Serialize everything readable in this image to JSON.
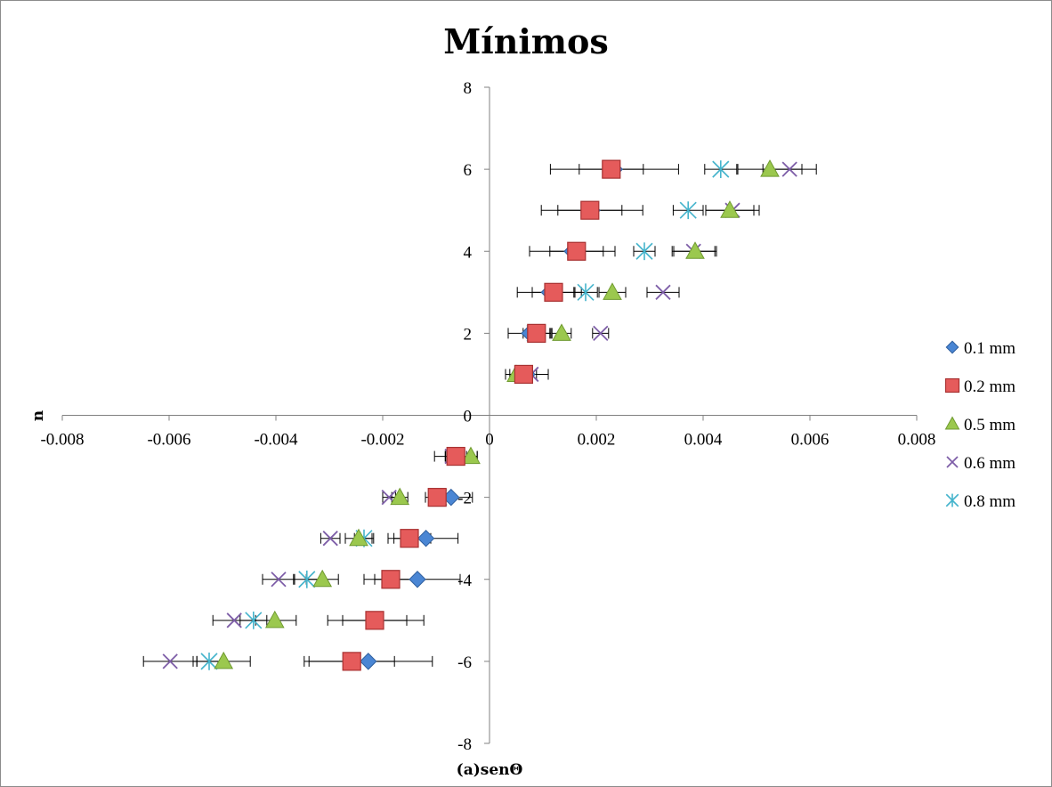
{
  "chart_data": {
    "type": "scatter",
    "title": "Mínimos",
    "xlabel": "(a)senΘ",
    "ylabel": "n",
    "xlim": [
      -0.008,
      0.008
    ],
    "ylim": [
      -8,
      8
    ],
    "x_ticks": [
      -0.008,
      -0.006,
      -0.004,
      -0.002,
      0,
      0.002,
      0.004,
      0.006,
      0.008
    ],
    "x_tick_labels": [
      "-0.008",
      "-0.006",
      "-0.004",
      "-0.002",
      "0",
      "0.002",
      "0.004",
      "0.006",
      "0.008"
    ],
    "y_ticks": [
      -8,
      -6,
      -4,
      -2,
      0,
      2,
      4,
      6,
      8
    ],
    "y_tick_labels": [
      "-8",
      "-6",
      "-4",
      "-2",
      "0",
      "2",
      "4",
      "6",
      "8"
    ],
    "grid": false,
    "legend_position": "right",
    "error_bars": "horizontal",
    "series": [
      {
        "name": "0.1 mm",
        "marker": "diamond",
        "color": "#4a86d4",
        "y": [
          1,
          2,
          3,
          4,
          5,
          6,
          -1,
          -2,
          -3,
          -4,
          -5,
          -6
        ],
        "x": [
          0.0007,
          0.00075,
          0.00112,
          0.00155,
          0.00192,
          0.00234,
          -0.00063,
          -0.00072,
          -0.00119,
          -0.00135,
          -0.00213,
          -0.00227
        ],
        "xerr": [
          0.0004,
          0.0004,
          0.0006,
          0.0008,
          0.00095,
          0.0012,
          0.0004,
          0.0004,
          0.0006,
          0.0008,
          0.0009,
          0.0012
        ]
      },
      {
        "name": "0.2 mm",
        "marker": "square",
        "color": "#e55b5b",
        "y": [
          1,
          2,
          3,
          4,
          5,
          6,
          -1,
          -2,
          -3,
          -4,
          -5,
          -6
        ],
        "x": [
          0.00064,
          0.00088,
          0.0012,
          0.00163,
          0.00188,
          0.00228,
          -0.00063,
          -0.00098,
          -0.0015,
          -0.00185,
          -0.00215,
          -0.00258
        ],
        "xerr": [
          0.00015,
          0.00025,
          0.0004,
          0.0005,
          0.0006,
          0.0006,
          0.0002,
          0.00022,
          0.0004,
          0.0005,
          0.0006,
          0.0008
        ]
      },
      {
        "name": "0.5 mm",
        "marker": "triangle",
        "color": "#9bc84e",
        "y": [
          1,
          2,
          3,
          4,
          5,
          6,
          -1,
          -2,
          -3,
          -4,
          -5,
          -6
        ],
        "x": [
          0.0005,
          0.00135,
          0.0023,
          0.00385,
          0.0045,
          0.00525,
          -0.00035,
          -0.00168,
          -0.00245,
          -0.00313,
          -0.00402,
          -0.00498
        ],
        "xerr": [
          0.00012,
          0.00018,
          0.00025,
          0.0004,
          0.00045,
          0.0006,
          0.00012,
          0.00015,
          0.00025,
          0.0003,
          0.0004,
          0.0005
        ]
      },
      {
        "name": "0.6 mm",
        "marker": "x",
        "color": "#7e5ea8",
        "y": [
          1,
          2,
          3,
          4,
          5,
          6,
          -1,
          -2,
          -3,
          -4,
          -5,
          -6
        ],
        "x": [
          0.00078,
          0.00208,
          0.00325,
          0.00382,
          0.00455,
          0.00562,
          -0.0007,
          -0.00188,
          -0.00298,
          -0.00395,
          -0.00478,
          -0.00598
        ],
        "xerr": [
          0.0001,
          0.00015,
          0.0003,
          0.0004,
          0.0005,
          0.0005,
          0.00012,
          0.00012,
          0.00018,
          0.0003,
          0.0004,
          0.0005
        ]
      },
      {
        "name": "0.8 mm",
        "marker": "asterisk",
        "color": "#45b4cc",
        "y": [
          1,
          2,
          3,
          4,
          5,
          6,
          -1,
          -2,
          -3,
          -4,
          -5,
          -6
        ],
        "x": [
          0.00064,
          0.00085,
          0.0018,
          0.0029,
          0.00372,
          0.00433,
          -0.00065,
          -0.00095,
          -0.00235,
          -0.00342,
          -0.00442,
          -0.00525
        ],
        "xerr": [
          0.00012,
          0.00015,
          0.00022,
          0.0002,
          0.00028,
          0.0003,
          0.00012,
          0.00012,
          0.00018,
          0.00025,
          0.00025,
          0.0003
        ]
      }
    ]
  }
}
